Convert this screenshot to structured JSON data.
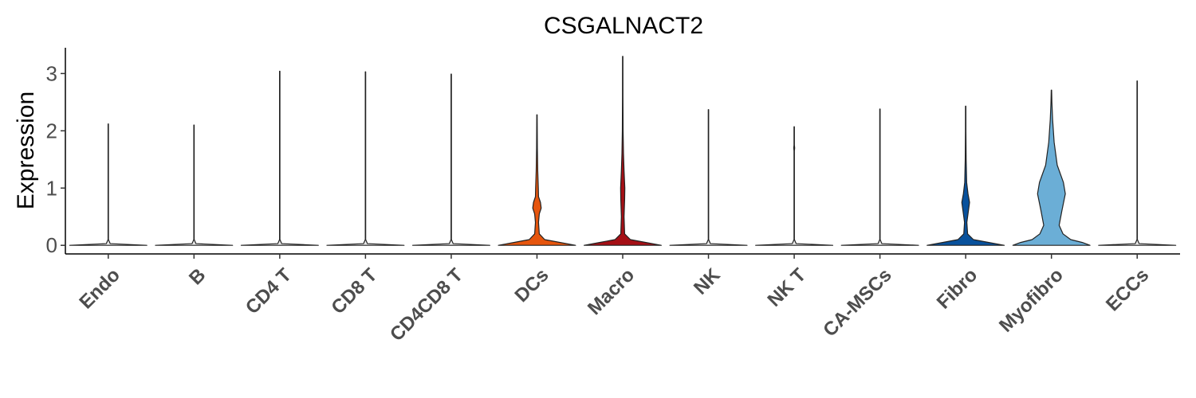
{
  "chart_data": {
    "type": "violin",
    "title": "CSGALNACT2",
    "xlabel": "",
    "ylabel": "Expression",
    "ylim": [
      -0.15,
      3.45
    ],
    "yticks": [
      0,
      1,
      2,
      3
    ],
    "categories": [
      "Endo",
      "B",
      "CD4 T",
      "CD8 T",
      "CD4CD8 T",
      "DCs",
      "Macro",
      "NK",
      "NK T",
      "CA-MSCs",
      "Fibro",
      "Myofibro",
      "ECCs"
    ],
    "colors": [
      "#e8e8e8",
      "#e8e8e8",
      "#e8e8e8",
      "#e8e8e8",
      "#e8e8e8",
      "#e6550d",
      "#a50f15",
      "#e8e8e8",
      "#e8e8e8",
      "#e8e8e8",
      "#08519c",
      "#6baed6",
      "#e8e8e8"
    ],
    "max_values": [
      2.12,
      2.1,
      3.04,
      3.03,
      2.99,
      2.28,
      3.3,
      2.37,
      2.07,
      2.38,
      2.43,
      2.71,
      2.87
    ],
    "density": [
      [
        [
          0,
          1.0
        ],
        [
          0.03,
          0.05
        ],
        [
          0.1,
          0.005
        ],
        [
          2.12,
          0.005
        ]
      ],
      [
        [
          0,
          1.0
        ],
        [
          0.03,
          0.05
        ],
        [
          0.1,
          0.005
        ],
        [
          2.1,
          0.005
        ]
      ],
      [
        [
          0,
          1.0
        ],
        [
          0.03,
          0.05
        ],
        [
          0.1,
          0.005
        ],
        [
          3.04,
          0.005
        ]
      ],
      [
        [
          0,
          1.0
        ],
        [
          0.03,
          0.05
        ],
        [
          0.1,
          0.005
        ],
        [
          3.03,
          0.005
        ]
      ],
      [
        [
          0,
          1.0
        ],
        [
          0.03,
          0.05
        ],
        [
          0.1,
          0.005
        ],
        [
          2.99,
          0.005
        ]
      ],
      [
        [
          0,
          1.0
        ],
        [
          0.05,
          0.6
        ],
        [
          0.1,
          0.2
        ],
        [
          0.2,
          0.06
        ],
        [
          0.4,
          0.04
        ],
        [
          0.55,
          0.06
        ],
        [
          0.65,
          0.11
        ],
        [
          0.75,
          0.09
        ],
        [
          0.85,
          0.04
        ],
        [
          1.0,
          0.035
        ],
        [
          1.3,
          0.02
        ],
        [
          1.7,
          0.01
        ],
        [
          2.28,
          0.005
        ]
      ],
      [
        [
          0,
          1.0
        ],
        [
          0.05,
          0.6
        ],
        [
          0.1,
          0.2
        ],
        [
          0.2,
          0.05
        ],
        [
          0.5,
          0.035
        ],
        [
          0.8,
          0.05
        ],
        [
          1.0,
          0.055
        ],
        [
          1.3,
          0.035
        ],
        [
          1.6,
          0.02
        ],
        [
          2.0,
          0.01
        ],
        [
          2.6,
          0.006
        ],
        [
          3.3,
          0.005
        ]
      ],
      [
        [
          0,
          1.0
        ],
        [
          0.03,
          0.05
        ],
        [
          0.1,
          0.005
        ],
        [
          2.37,
          0.005
        ]
      ],
      [
        [
          0,
          1.0
        ],
        [
          0.03,
          0.05
        ],
        [
          0.1,
          0.005
        ],
        [
          1.65,
          0.005
        ],
        [
          1.7,
          0.012
        ],
        [
          1.75,
          0.005
        ],
        [
          2.07,
          0.005
        ]
      ],
      [
        [
          0,
          1.0
        ],
        [
          0.03,
          0.05
        ],
        [
          0.1,
          0.005
        ],
        [
          2.38,
          0.005
        ]
      ],
      [
        [
          0,
          1.0
        ],
        [
          0.05,
          0.6
        ],
        [
          0.1,
          0.2
        ],
        [
          0.2,
          0.05
        ],
        [
          0.4,
          0.03
        ],
        [
          0.6,
          0.07
        ],
        [
          0.75,
          0.1
        ],
        [
          0.9,
          0.06
        ],
        [
          1.1,
          0.025
        ],
        [
          1.5,
          0.012
        ],
        [
          2.0,
          0.006
        ],
        [
          2.43,
          0.005
        ]
      ],
      [
        [
          0,
          1.0
        ],
        [
          0.05,
          0.8
        ],
        [
          0.1,
          0.5
        ],
        [
          0.2,
          0.3
        ],
        [
          0.35,
          0.2
        ],
        [
          0.6,
          0.27
        ],
        [
          0.9,
          0.36
        ],
        [
          1.1,
          0.31
        ],
        [
          1.4,
          0.15
        ],
        [
          1.8,
          0.07
        ],
        [
          2.2,
          0.03
        ],
        [
          2.5,
          0.012
        ],
        [
          2.71,
          0.005
        ]
      ],
      [
        [
          0,
          1.0
        ],
        [
          0.03,
          0.05
        ],
        [
          0.1,
          0.005
        ],
        [
          2.87,
          0.005
        ]
      ]
    ]
  }
}
